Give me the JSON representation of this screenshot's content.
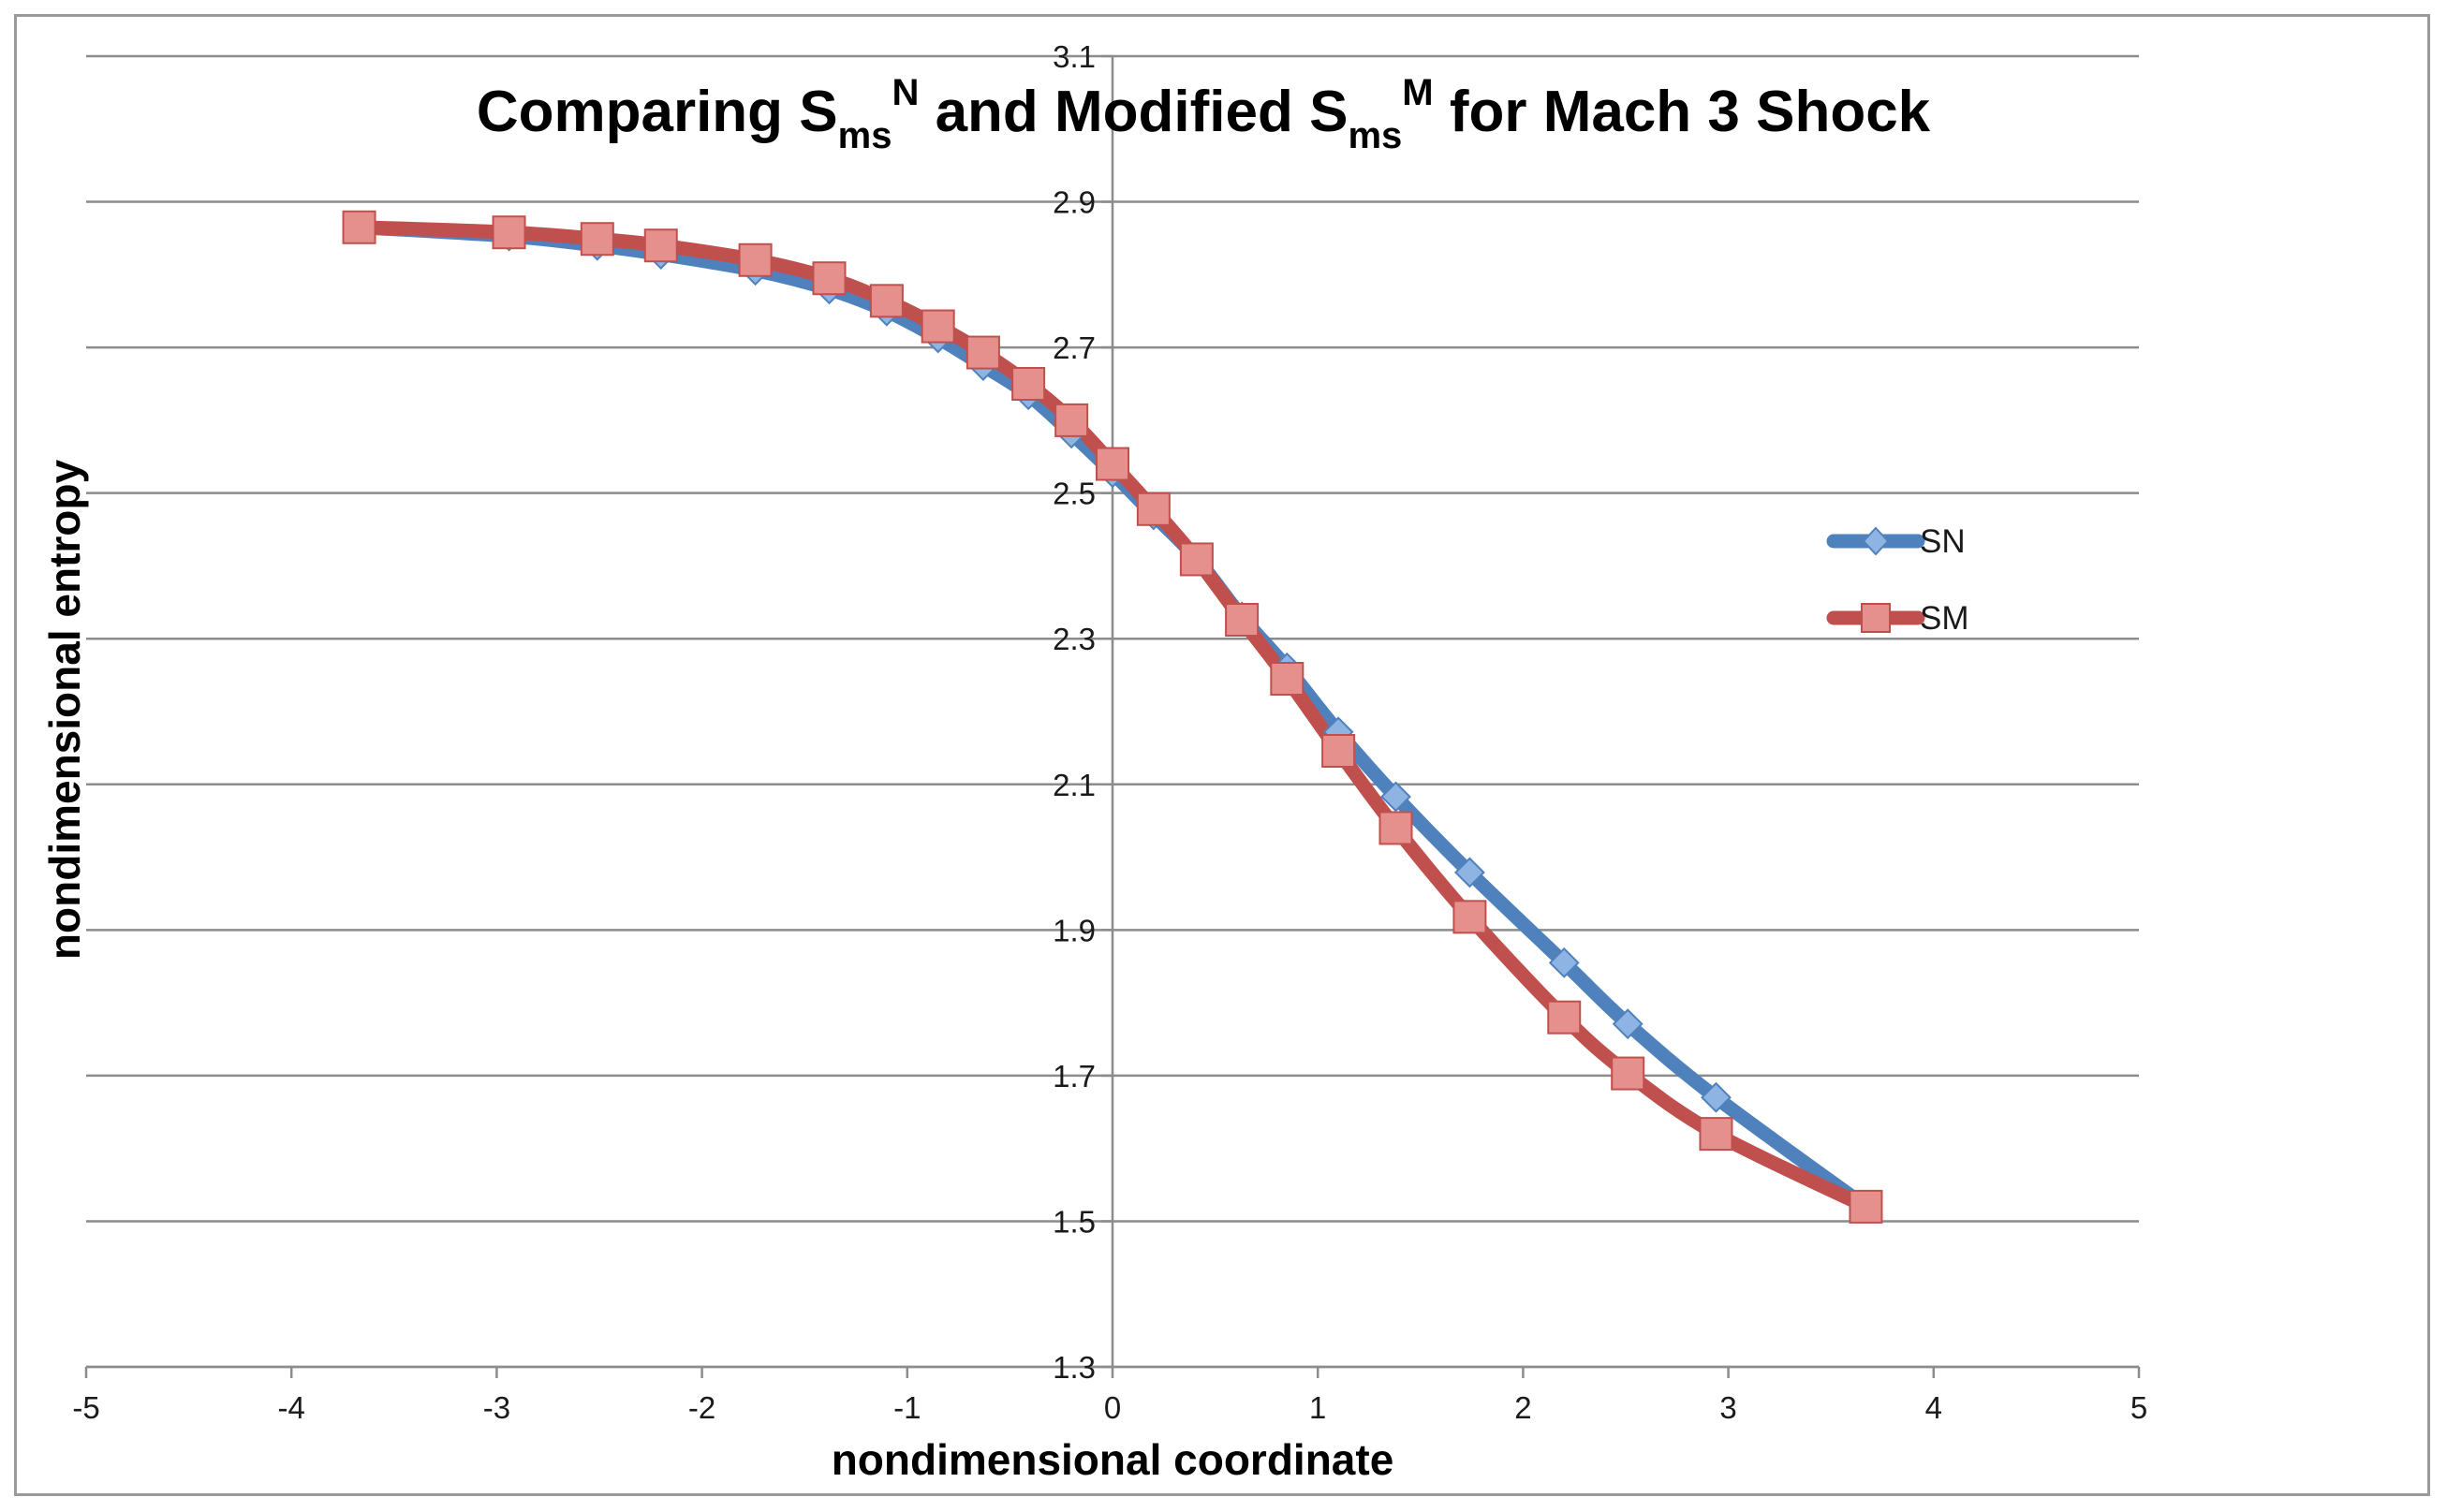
{
  "chart_data": {
    "type": "line",
    "title": {
      "part1": "Comparing S",
      "sub1": "ms",
      "sup1": "N",
      "part2": " and Modified S",
      "sub2": "ms",
      "sup2": "M",
      "part3": " for Mach 3 Shock"
    },
    "xlabel": "nondimensional coordinate",
    "ylabel": "nondimensional entropy",
    "xlim": [
      -5,
      5
    ],
    "ylim": [
      1.3,
      3.1
    ],
    "xticks": [
      "-5",
      "-4",
      "-3",
      "-2",
      "-1",
      "0",
      "1",
      "2",
      "3",
      "4",
      "5"
    ],
    "yticks": [
      "1.3",
      "1.5",
      "1.7",
      "1.9",
      "2.1",
      "2.3",
      "2.5",
      "2.7",
      "2.9",
      "3.1"
    ],
    "grid": "horizontal",
    "legend": "right",
    "series": [
      {
        "name": "SN",
        "color": "#4f81bd",
        "marker": "diamond",
        "x": [
          -3.67,
          -2.94,
          -2.51,
          -2.2,
          -1.74,
          -1.38,
          -1.1,
          -0.85,
          -0.63,
          -0.41,
          -0.2,
          0.0,
          0.2,
          0.41,
          0.63,
          0.85,
          1.1,
          1.38,
          1.74,
          2.2,
          2.51,
          2.94,
          3.67
        ],
        "y": [
          2.865,
          2.853,
          2.84,
          2.828,
          2.806,
          2.78,
          2.75,
          2.713,
          2.675,
          2.635,
          2.582,
          2.528,
          2.47,
          2.41,
          2.33,
          2.26,
          2.172,
          2.083,
          1.979,
          1.855,
          1.771,
          1.67,
          1.52
        ]
      },
      {
        "name": "SM",
        "color": "#c0504d",
        "marker": "square",
        "x": [
          -3.67,
          -2.94,
          -2.51,
          -2.2,
          -1.74,
          -1.38,
          -1.1,
          -0.85,
          -0.63,
          -0.41,
          -0.2,
          0.0,
          0.2,
          0.41,
          0.63,
          0.85,
          1.1,
          1.38,
          1.74,
          2.2,
          2.51,
          2.94,
          3.67
        ],
        "y": [
          2.865,
          2.858,
          2.849,
          2.84,
          2.82,
          2.795,
          2.764,
          2.729,
          2.693,
          2.65,
          2.6,
          2.54,
          2.478,
          2.409,
          2.326,
          2.245,
          2.146,
          2.04,
          1.918,
          1.78,
          1.703,
          1.62,
          1.52
        ]
      }
    ]
  }
}
